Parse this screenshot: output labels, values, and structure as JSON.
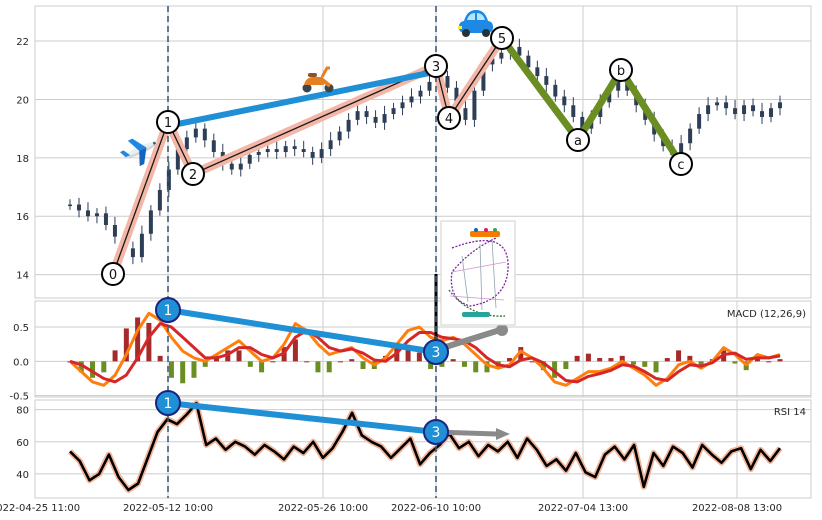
{
  "chart_data": {
    "type": "line",
    "x_tick_labels": [
      "2022-04-25 11:00",
      "2022-05-12 10:00",
      "2022-05-26 10:00",
      "2022-06-10 10:00",
      "2022-07-04 13:00",
      "2022-08-08 13:00"
    ],
    "price_panel": {
      "type": "candlestick",
      "ylim": [
        13.2,
        23.2
      ],
      "yticks": [
        14,
        16,
        18,
        20,
        22
      ],
      "series": [
        {
          "values": [
            16.4,
            16.2,
            16.0,
            16.1,
            15.7,
            15.3,
            14.9,
            14.6,
            15.4,
            16.2,
            16.9,
            17.6,
            18.3,
            18.7,
            19.0,
            18.6,
            18.2,
            17.8,
            17.6,
            17.8,
            18.1,
            18.2,
            18.3,
            18.2,
            18.4,
            18.3,
            18.2,
            18.0,
            18.3,
            18.6,
            18.9,
            19.3,
            19.6,
            19.4,
            19.2,
            19.5,
            19.7,
            19.9,
            20.1,
            20.3,
            20.6,
            20.8,
            20.4,
            19.7,
            19.3,
            20.3,
            21.2,
            21.4,
            21.6,
            21.8,
            21.5,
            21.1,
            20.8,
            20.5,
            20.1,
            19.8,
            19.4,
            19.0,
            19.4,
            19.9,
            20.3,
            20.7,
            20.3,
            19.8,
            19.3,
            18.8,
            18.4,
            18.1,
            18.5,
            19.0,
            19.5,
            19.8,
            19.9,
            19.7,
            19.5,
            19.8,
            19.6,
            19.4,
            19.7,
            19.9
          ]
        }
      ]
    },
    "elliott_wave": {
      "labels": [
        "0",
        "1",
        "2",
        "3",
        "4",
        "5",
        "a",
        "b",
        "c"
      ],
      "points": [
        {
          "label": "0",
          "x": "2022-05-04",
          "y": 14.6
        },
        {
          "label": "1",
          "x": "2022-05-12 10:00",
          "y": 19.2
        },
        {
          "label": "2",
          "x": "2022-05-15",
          "y": 17.6
        },
        {
          "label": "3",
          "x": "2022-06-10 10:00",
          "y": 20.9
        },
        {
          "label": "4",
          "x": "2022-06-12",
          "y": 19.5
        },
        {
          "label": "5",
          "x": "2022-06-19",
          "y": 21.9
        },
        {
          "label": "a",
          "x": "2022-07-01",
          "y": 19.1
        },
        {
          "label": "b",
          "x": "2022-07-06",
          "y": 20.6
        },
        {
          "label": "c",
          "x": "2022-07-16",
          "y": 18.3
        }
      ]
    },
    "macd_panel": {
      "label": "MACD (12,26,9)",
      "ylim": [
        -0.52,
        0.88
      ],
      "yticks": [
        -0.5,
        0.0,
        0.5
      ],
      "series": [
        {
          "key": "macd",
          "color": "#ff7f0e",
          "values": [
            0.0,
            -0.15,
            -0.3,
            -0.35,
            -0.2,
            0.1,
            0.45,
            0.7,
            0.6,
            0.35,
            0.15,
            0.05,
            0.0,
            0.1,
            0.2,
            0.3,
            0.15,
            0.0,
            0.05,
            0.25,
            0.55,
            0.45,
            0.25,
            0.1,
            0.15,
            0.2,
            0.05,
            -0.05,
            0.05,
            0.25,
            0.45,
            0.5,
            0.35,
            0.3,
            0.35,
            0.25,
            0.1,
            -0.05,
            -0.1,
            -0.05,
            0.15,
            0.05,
            -0.1,
            -0.3,
            -0.35,
            -0.25,
            -0.15,
            -0.15,
            -0.1,
            0.0,
            -0.1,
            -0.2,
            -0.35,
            -0.25,
            -0.05,
            0.0,
            -0.1,
            0.0,
            0.2,
            0.1,
            -0.05,
            0.1,
            0.05,
            0.1
          ]
        },
        {
          "key": "signal",
          "color": "#d62728",
          "values": [
            0.0,
            -0.05,
            -0.15,
            -0.25,
            -0.3,
            -0.2,
            0.05,
            0.35,
            0.55,
            0.5,
            0.35,
            0.2,
            0.05,
            0.05,
            0.1,
            0.2,
            0.2,
            0.1,
            0.05,
            0.12,
            0.35,
            0.45,
            0.35,
            0.2,
            0.15,
            0.18,
            0.12,
            0.02,
            0.0,
            0.12,
            0.3,
            0.42,
            0.42,
            0.35,
            0.33,
            0.3,
            0.2,
            0.05,
            -0.05,
            -0.08,
            0.02,
            0.05,
            -0.02,
            -0.15,
            -0.28,
            -0.3,
            -0.22,
            -0.18,
            -0.13,
            -0.05,
            -0.07,
            -0.15,
            -0.25,
            -0.28,
            -0.15,
            -0.05,
            -0.07,
            -0.02,
            0.1,
            0.12,
            0.03,
            0.05,
            0.05,
            0.08
          ]
        }
      ]
    },
    "rsi_panel": {
      "label": "RSI 14",
      "ylim": [
        25,
        86
      ],
      "yticks": [
        40,
        60,
        80
      ],
      "series": [
        {
          "key": "rsi",
          "color": "#000000",
          "values": [
            54,
            48,
            36,
            40,
            52,
            38,
            30,
            34,
            50,
            66,
            74,
            71,
            77,
            84,
            58,
            62,
            55,
            60,
            57,
            52,
            58,
            54,
            49,
            57,
            53,
            60,
            50,
            56,
            66,
            78,
            64,
            60,
            57,
            50,
            56,
            62,
            46,
            53,
            58,
            65,
            56,
            60,
            51,
            58,
            54,
            60,
            50,
            62,
            55,
            45,
            49,
            42,
            53,
            41,
            38,
            52,
            57,
            49,
            58,
            32,
            53,
            45,
            57,
            53,
            44,
            58,
            52,
            47,
            54,
            56,
            43,
            55,
            48,
            56
          ]
        }
      ]
    },
    "divergence_lines": [
      {
        "panel": "macd",
        "from_label": "1",
        "to_label": "3",
        "color": "#1f8fd6"
      },
      {
        "panel": "rsi",
        "from_label": "1",
        "to_label": "3",
        "color": "#1f8fd6"
      },
      {
        "panel": "price",
        "from_label": "1",
        "to_label": "3",
        "color": "#1f8fd6"
      }
    ],
    "marker_labels": {
      "macd": [
        "1",
        "3"
      ],
      "rsi": [
        "1",
        "3"
      ]
    },
    "colors": {
      "candle": "#2e3e56",
      "grid": "#cccccc",
      "wave_up": "#f4b6a6",
      "wave_down": "#6b8e23",
      "divergence": "#1f8fd6",
      "marker_fill": "#1f8fd6",
      "marker_edge": "#1a237e",
      "macd_hist_pos": "#a52a2a",
      "macd_hist_neg": "#6b8e23",
      "rsi_halo": "#f4b69a"
    },
    "icons": [
      "airplane-icon",
      "scooter-icon",
      "car-icon",
      "roller-coaster-icon"
    ]
  }
}
